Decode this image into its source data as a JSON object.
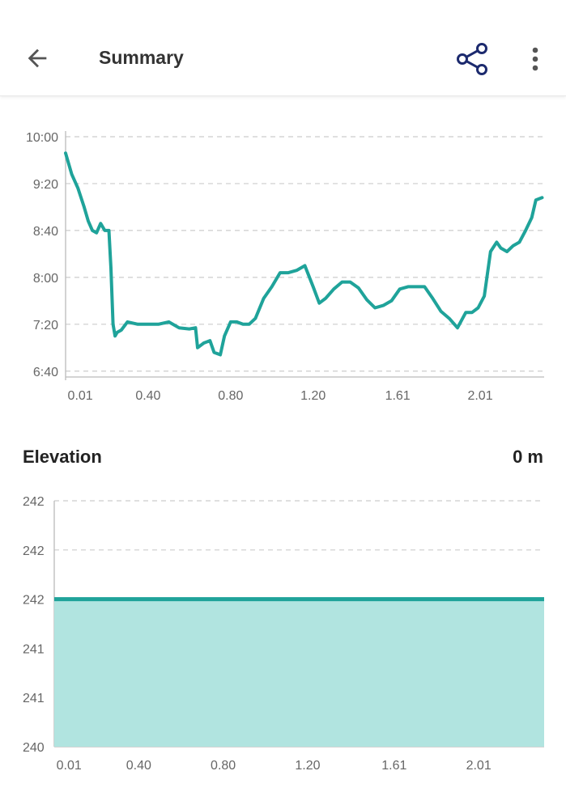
{
  "header": {
    "title": "Summary",
    "back_icon": "arrow-left-icon",
    "share_icon": "share-icon",
    "more_icon": "more-vertical-icon"
  },
  "colors": {
    "accent": "#1fa39a",
    "fill": "#b1e4e0",
    "grid": "#cccccc",
    "axis_text": "#666666"
  },
  "elevation": {
    "title": "Elevation",
    "value": "0 m"
  },
  "chart_data": [
    {
      "type": "line",
      "x_tick_labels": [
        "0.01",
        "0.40",
        "0.80",
        "1.20",
        "1.61",
        "2.01"
      ],
      "x_tick_values": [
        0.01,
        0.4,
        0.8,
        1.2,
        1.61,
        2.01
      ],
      "y_tick_labels": [
        "10:00",
        "9:20",
        "8:40",
        "8:00",
        "7:20",
        "6:40"
      ],
      "y_tick_values": [
        600,
        560,
        520,
        480,
        440,
        400
      ],
      "xlim": [
        0.0,
        2.32
      ],
      "ylim": [
        395,
        600
      ],
      "grid": true,
      "x": [
        0.0,
        0.03,
        0.06,
        0.09,
        0.11,
        0.13,
        0.15,
        0.17,
        0.19,
        0.21,
        0.22,
        0.23,
        0.24,
        0.25,
        0.27,
        0.3,
        0.35,
        0.4,
        0.45,
        0.5,
        0.55,
        0.6,
        0.63,
        0.64,
        0.67,
        0.7,
        0.72,
        0.75,
        0.77,
        0.8,
        0.83,
        0.86,
        0.89,
        0.92,
        0.96,
        1.0,
        1.04,
        1.08,
        1.12,
        1.16,
        1.2,
        1.23,
        1.26,
        1.3,
        1.34,
        1.38,
        1.42,
        1.46,
        1.5,
        1.54,
        1.58,
        1.62,
        1.66,
        1.7,
        1.74,
        1.78,
        1.82,
        1.86,
        1.9,
        1.94,
        1.97,
        2.0,
        2.03,
        2.06,
        2.09,
        2.11,
        2.14,
        2.17,
        2.2,
        2.23,
        2.26,
        2.28,
        2.31
      ],
      "y": [
        586,
        568,
        556,
        540,
        528,
        520,
        518,
        526,
        520,
        520,
        488,
        440,
        430,
        433,
        435,
        442,
        440,
        440,
        440,
        442,
        437,
        436,
        437,
        420,
        424,
        426,
        416,
        414,
        430,
        442,
        442,
        440,
        440,
        445,
        462,
        472,
        484,
        484,
        486,
        490,
        472,
        458,
        462,
        470,
        476,
        476,
        471,
        461,
        454,
        456,
        460,
        470,
        472,
        472,
        472,
        462,
        451,
        445,
        437,
        450,
        450,
        454,
        464,
        502,
        510,
        505,
        502,
        507,
        510,
        520,
        531,
        546,
        548
      ],
      "series_color": "#1fa39a"
    },
    {
      "type": "area",
      "x_tick_labels": [
        "0.01",
        "0.40",
        "0.80",
        "1.20",
        "1.61",
        "2.01"
      ],
      "x_tick_values": [
        0.01,
        0.4,
        0.8,
        1.2,
        1.61,
        2.01
      ],
      "y_tick_labels": [
        "242",
        "242",
        "242",
        "241",
        "241",
        "240"
      ],
      "y_tick_values": [
        5,
        4,
        3,
        2,
        1,
        0
      ],
      "xlim": [
        0.0,
        2.32
      ],
      "ylim": [
        0,
        5
      ],
      "grid": true,
      "x": [
        0.0,
        2.32
      ],
      "y": [
        3,
        3
      ],
      "series_color": "#1fa39a",
      "fill_color": "#b1e4e0"
    }
  ]
}
